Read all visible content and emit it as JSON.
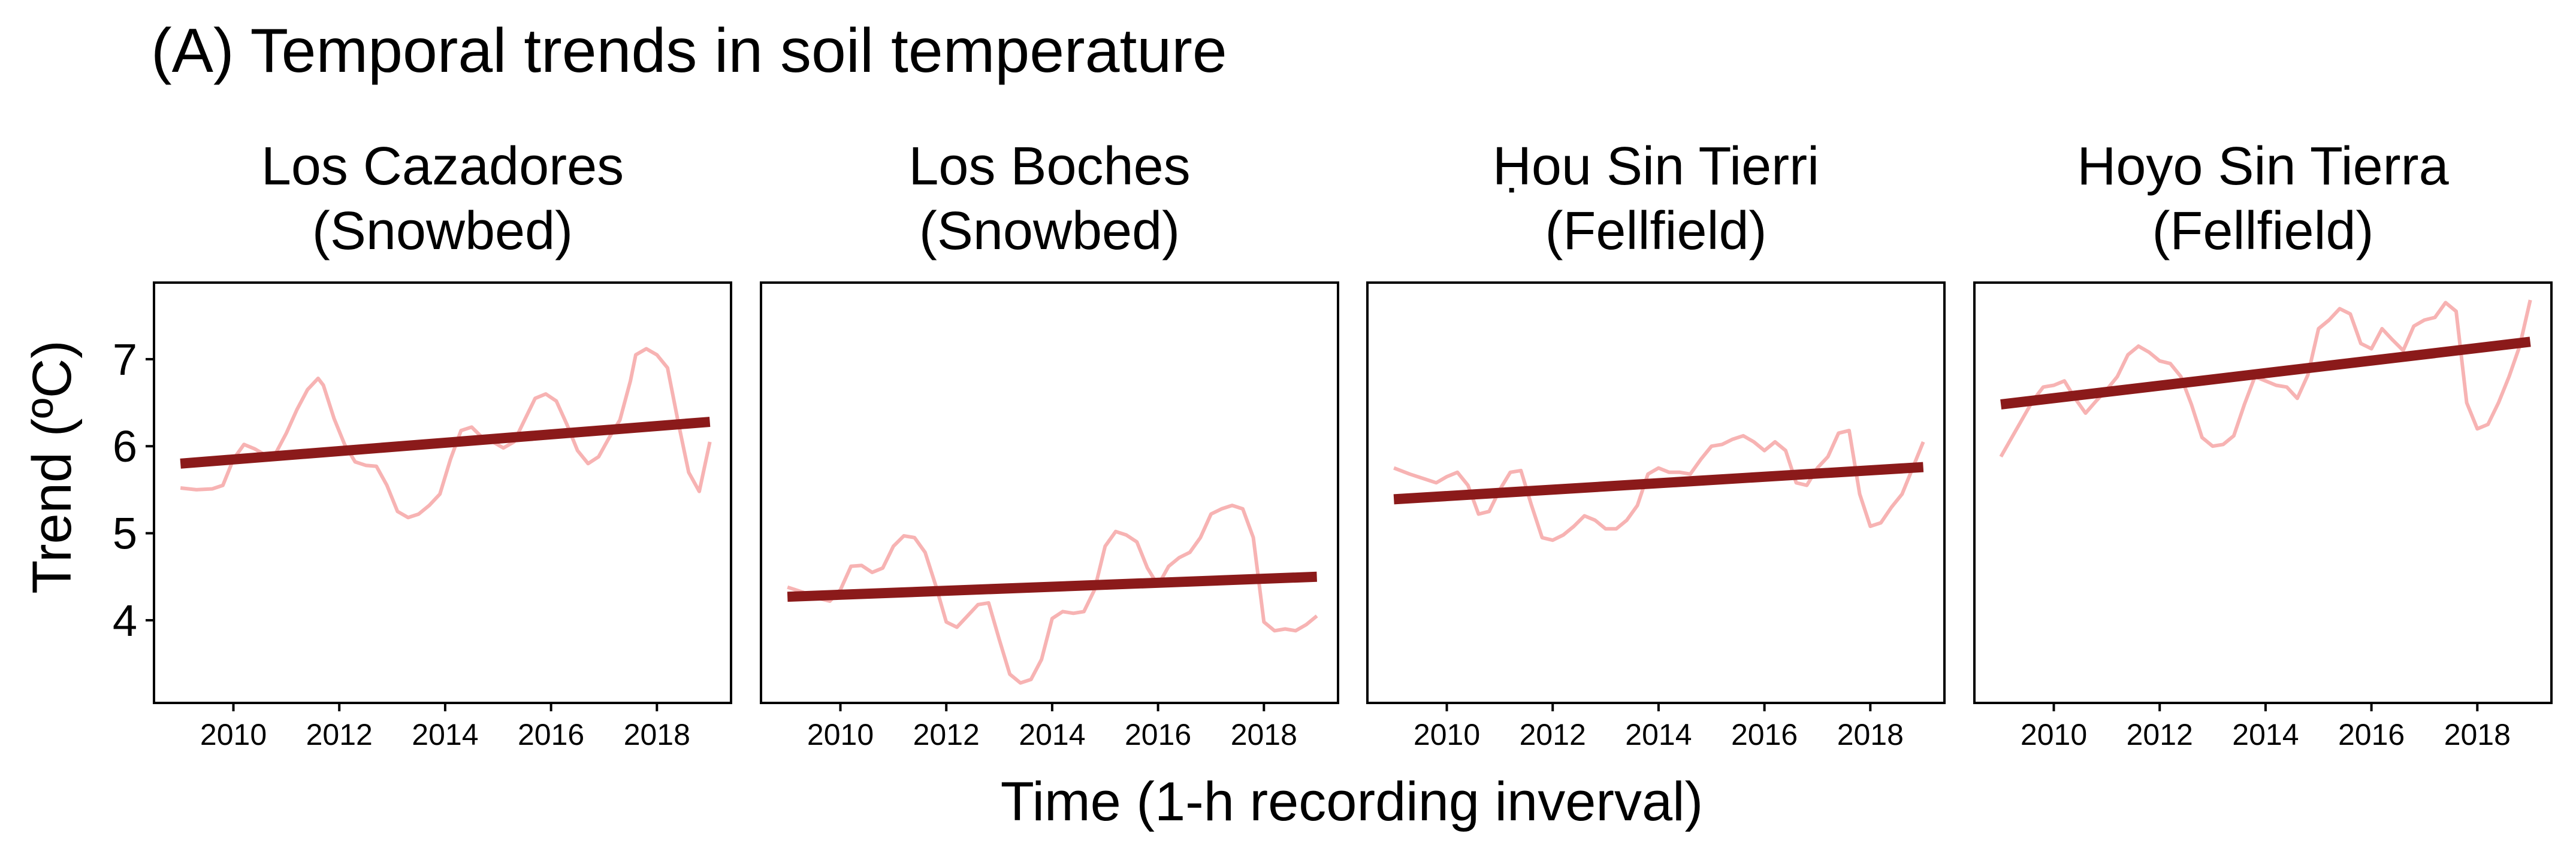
{
  "figure_title": "(A) Temporal trends in soil temperature",
  "xlabel": "Time (1-h recording inverval)",
  "ylabel": "Trend (ºC)",
  "colors": {
    "raw_series": "#f7b3b3",
    "trend_line": "#8b1a1a",
    "panel_border": "#000000"
  },
  "chart_data": [
    {
      "type": "line",
      "panel": "Los Cazadores (Snowbed)",
      "title_lines": [
        "Los Cazadores",
        "(Snowbed)"
      ],
      "xlim": [
        2008.5,
        2019.4
      ],
      "ylim": [
        3.05,
        7.88
      ],
      "xticks": [
        2010,
        2012,
        2014,
        2016,
        2018
      ],
      "yticks": [
        4,
        5,
        6,
        7
      ],
      "series": [
        {
          "x": [
            2009.0,
            2009.3,
            2009.6,
            2009.8,
            2010.0,
            2010.2,
            2010.4,
            2010.6,
            2010.8,
            2011.0,
            2011.2,
            2011.4,
            2011.6,
            2011.7,
            2011.9,
            2012.1,
            2012.3,
            2012.5,
            2012.7,
            2012.9,
            2013.1,
            2013.3,
            2013.5,
            2013.7,
            2013.9,
            2014.1,
            2014.3,
            2014.5,
            2014.7,
            2014.9,
            2015.1,
            2015.3,
            2015.5,
            2015.7,
            2015.9,
            2016.1,
            2016.3,
            2016.5,
            2016.7,
            2016.9,
            2017.1,
            2017.3,
            2017.5,
            2017.6,
            2017.8,
            2018.0,
            2018.2,
            2018.4,
            2018.6,
            2018.8,
            2019.0
          ],
          "y": [
            5.52,
            5.5,
            5.51,
            5.55,
            5.85,
            6.02,
            5.97,
            5.9,
            5.92,
            6.15,
            6.42,
            6.65,
            6.78,
            6.7,
            6.32,
            6.02,
            5.82,
            5.78,
            5.77,
            5.55,
            5.25,
            5.18,
            5.22,
            5.32,
            5.45,
            5.85,
            6.18,
            6.22,
            6.1,
            6.05,
            5.98,
            6.05,
            6.3,
            6.55,
            6.6,
            6.52,
            6.25,
            5.95,
            5.8,
            5.88,
            6.1,
            6.3,
            6.75,
            7.05,
            7.12,
            7.05,
            6.9,
            6.28,
            5.7,
            5.48,
            6.05
          ]
        },
        {
          "x": [
            2009.0,
            2019.0
          ],
          "y": [
            5.8,
            6.28
          ]
        }
      ]
    },
    {
      "type": "line",
      "panel": "Los Boches (Snowbed)",
      "title_lines": [
        "Los Boches",
        "(Snowbed)"
      ],
      "xlim": [
        2008.5,
        2019.4
      ],
      "ylim": [
        3.05,
        7.88
      ],
      "xticks": [
        2010,
        2012,
        2014,
        2016,
        2018
      ],
      "yticks": [
        4,
        5,
        6,
        7
      ],
      "series": [
        {
          "x": [
            2009.0,
            2009.3,
            2009.6,
            2009.8,
            2010.0,
            2010.2,
            2010.4,
            2010.6,
            2010.8,
            2011.0,
            2011.2,
            2011.4,
            2011.6,
            2011.8,
            2012.0,
            2012.2,
            2012.4,
            2012.6,
            2012.8,
            2013.0,
            2013.2,
            2013.4,
            2013.6,
            2013.8,
            2014.0,
            2014.2,
            2014.4,
            2014.6,
            2014.8,
            2015.0,
            2015.2,
            2015.4,
            2015.6,
            2015.8,
            2016.0,
            2016.2,
            2016.4,
            2016.6,
            2016.8,
            2017.0,
            2017.2,
            2017.4,
            2017.6,
            2017.8,
            2018.0,
            2018.2,
            2018.4,
            2018.6,
            2018.8,
            2019.0
          ],
          "y": [
            4.38,
            4.32,
            4.25,
            4.22,
            4.35,
            4.62,
            4.63,
            4.55,
            4.6,
            4.85,
            4.97,
            4.95,
            4.78,
            4.4,
            3.98,
            3.92,
            4.05,
            4.18,
            4.2,
            3.78,
            3.38,
            3.28,
            3.32,
            3.55,
            4.02,
            4.1,
            4.08,
            4.1,
            4.35,
            4.85,
            5.02,
            4.98,
            4.9,
            4.6,
            4.4,
            4.62,
            4.72,
            4.78,
            4.95,
            5.22,
            5.28,
            5.32,
            5.28,
            4.95,
            3.98,
            3.88,
            3.9,
            3.88,
            3.95,
            4.05
          ]
        },
        {
          "x": [
            2009.0,
            2019.0
          ],
          "y": [
            4.27,
            4.5
          ]
        }
      ]
    },
    {
      "type": "line",
      "panel": "Ḥou Sin Tierri (Fellfield)",
      "title_lines": [
        "Ḥou Sin Tierri",
        "(Fellfield)"
      ],
      "xlim": [
        2008.5,
        2019.4
      ],
      "ylim": [
        3.05,
        7.88
      ],
      "xticks": [
        2010,
        2012,
        2014,
        2016,
        2018
      ],
      "yticks": [
        4,
        5,
        6,
        7
      ],
      "series": [
        {
          "x": [
            2009.0,
            2009.3,
            2009.6,
            2009.8,
            2010.0,
            2010.2,
            2010.4,
            2010.6,
            2010.8,
            2011.0,
            2011.2,
            2011.4,
            2011.6,
            2011.8,
            2012.0,
            2012.2,
            2012.4,
            2012.6,
            2012.8,
            2013.0,
            2013.2,
            2013.4,
            2013.6,
            2013.8,
            2014.0,
            2014.2,
            2014.4,
            2014.6,
            2014.8,
            2015.0,
            2015.2,
            2015.4,
            2015.6,
            2015.8,
            2016.0,
            2016.2,
            2016.4,
            2016.6,
            2016.8,
            2017.0,
            2017.2,
            2017.4,
            2017.6,
            2017.8,
            2018.0,
            2018.2,
            2018.4,
            2018.6,
            2018.8,
            2019.0
          ],
          "y": [
            5.75,
            5.68,
            5.62,
            5.58,
            5.65,
            5.7,
            5.55,
            5.22,
            5.25,
            5.5,
            5.7,
            5.72,
            5.32,
            4.95,
            4.92,
            4.98,
            5.08,
            5.2,
            5.15,
            5.05,
            5.05,
            5.15,
            5.32,
            5.68,
            5.75,
            5.7,
            5.7,
            5.68,
            5.85,
            6.0,
            6.02,
            6.08,
            6.12,
            6.05,
            5.95,
            6.05,
            5.95,
            5.58,
            5.55,
            5.75,
            5.88,
            6.15,
            6.18,
            5.45,
            5.08,
            5.12,
            5.3,
            5.45,
            5.75,
            6.05
          ]
        },
        {
          "x": [
            2009.0,
            2019.0
          ],
          "y": [
            5.39,
            5.76
          ]
        }
      ]
    },
    {
      "type": "line",
      "panel": "Hoyo Sin Tierra (Fellfield)",
      "title_lines": [
        "Hoyo Sin Tierra",
        "(Fellfield)"
      ],
      "xlim": [
        2008.5,
        2019.4
      ],
      "ylim": [
        3.05,
        7.88
      ],
      "xticks": [
        2010,
        2012,
        2014,
        2016,
        2018
      ],
      "yticks": [
        4,
        5,
        6,
        7
      ],
      "series": [
        {
          "x": [
            2009.0,
            2009.3,
            2009.6,
            2009.8,
            2010.0,
            2010.2,
            2010.4,
            2010.6,
            2010.8,
            2011.0,
            2011.2,
            2011.4,
            2011.6,
            2011.8,
            2012.0,
            2012.2,
            2012.4,
            2012.6,
            2012.8,
            2013.0,
            2013.2,
            2013.4,
            2013.6,
            2013.8,
            2014.0,
            2014.2,
            2014.4,
            2014.6,
            2014.8,
            2015.0,
            2015.2,
            2015.4,
            2015.6,
            2015.8,
            2016.0,
            2016.2,
            2016.4,
            2016.6,
            2016.8,
            2017.0,
            2017.2,
            2017.4,
            2017.6,
            2017.8,
            2018.0,
            2018.2,
            2018.4,
            2018.6,
            2018.8,
            2019.0
          ],
          "y": [
            5.88,
            6.2,
            6.52,
            6.68,
            6.7,
            6.75,
            6.55,
            6.38,
            6.52,
            6.65,
            6.8,
            7.05,
            7.15,
            7.08,
            6.98,
            6.95,
            6.8,
            6.48,
            6.1,
            6.0,
            6.02,
            6.12,
            6.48,
            6.8,
            6.75,
            6.7,
            6.68,
            6.55,
            6.82,
            7.35,
            7.45,
            7.58,
            7.52,
            7.18,
            7.12,
            7.35,
            7.22,
            7.1,
            7.38,
            7.45,
            7.48,
            7.65,
            7.55,
            6.5,
            6.2,
            6.25,
            6.5,
            6.8,
            7.15,
            7.68
          ]
        },
        {
          "x": [
            2009.0,
            2019.0
          ],
          "y": [
            6.48,
            7.2
          ]
        }
      ]
    }
  ]
}
